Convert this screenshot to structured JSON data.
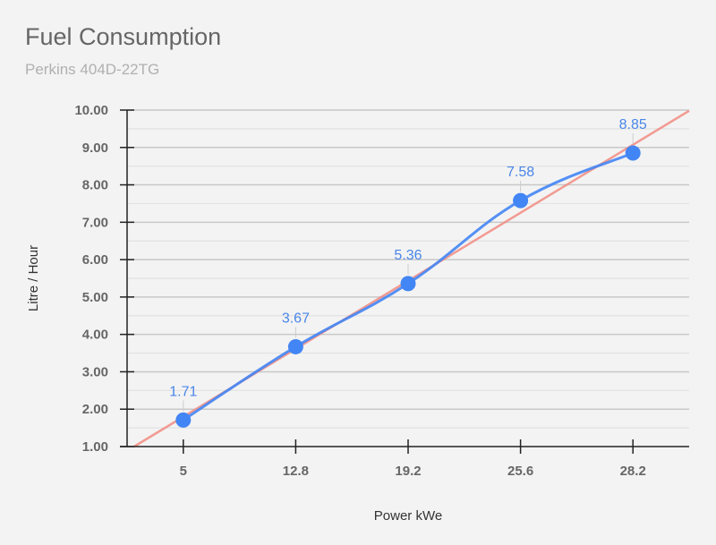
{
  "chart_data": {
    "type": "line",
    "title": "Fuel Consumption",
    "subtitle": "Perkins 404D-22TG",
    "xlabel": "Power kWe",
    "ylabel": "Litre / Hour",
    "categories": [
      "5",
      "12.8",
      "19.2",
      "25.6",
      "28.2"
    ],
    "series": [
      {
        "values": [
          1.71,
          3.67,
          5.36,
          7.58,
          8.85
        ],
        "data_labels": [
          "1.71",
          "3.67",
          "5.36",
          "7.58",
          "8.85"
        ],
        "color": "#4285f4",
        "smooth": true
      }
    ],
    "trendline": {
      "type": "linear",
      "color": "#f28b82"
    },
    "ylim": [
      1,
      10
    ],
    "yticks": [
      "1.00",
      "2.00",
      "3.00",
      "4.00",
      "5.00",
      "6.00",
      "7.00",
      "8.00",
      "9.00",
      "10.00"
    ],
    "grid": true,
    "minor_grid": true,
    "legend": "none"
  }
}
